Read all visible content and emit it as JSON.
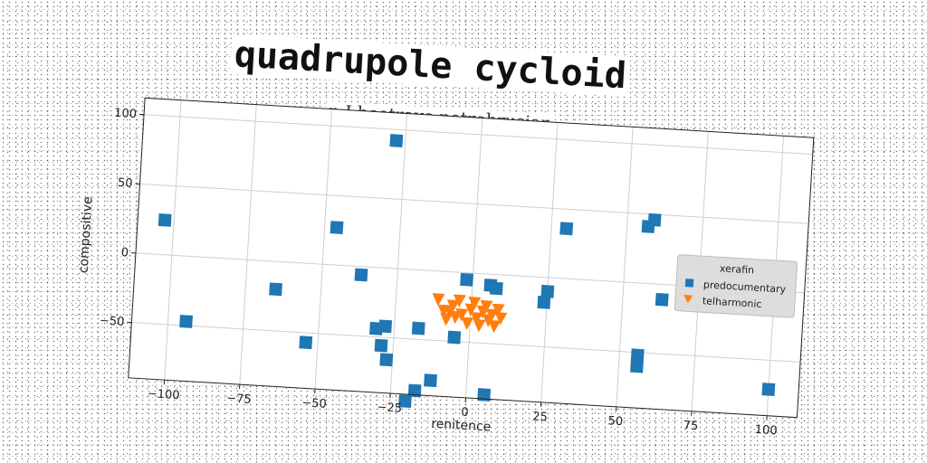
{
  "chart_data": {
    "type": "scatter",
    "title": "quadrupole cycloid",
    "subtitle": "n I beetrave petrobrusian",
    "xlabel": "renitence",
    "ylabel": "compositive",
    "xlim": [
      -112,
      110
    ],
    "ylim": [
      -90,
      112
    ],
    "xticks": [
      -100,
      -75,
      -50,
      -25,
      0,
      25,
      50,
      75,
      100
    ],
    "xtick_labels": [
      "−100",
      "−75",
      "−50",
      "−25",
      "0",
      "25",
      "50",
      "75",
      "100"
    ],
    "yticks": [
      -50,
      0,
      50,
      100
    ],
    "ytick_labels": [
      "−50",
      "0",
      "50",
      "100"
    ],
    "grid": true,
    "legend": {
      "title": "xerafin",
      "position": "center-right",
      "entries": [
        "predocumentary",
        "telharmonic"
      ]
    },
    "series": [
      {
        "name": "predocumentary",
        "marker": "square",
        "color": "#1f77b4",
        "points": [
          [
            -28,
            92
          ],
          [
            -103,
            25
          ],
          [
            -46,
            27
          ],
          [
            -37,
            -6
          ],
          [
            -65,
            -20
          ],
          [
            -94,
            -47
          ],
          [
            -54,
            -57
          ],
          [
            -31,
            -44
          ],
          [
            -28,
            -42
          ],
          [
            -17,
            -42
          ],
          [
            -29,
            -56
          ],
          [
            -27,
            -66
          ],
          [
            -5,
            -47
          ],
          [
            -2,
            -5
          ],
          [
            6,
            -8
          ],
          [
            8,
            -10
          ],
          [
            -12,
            -79
          ],
          [
            -17,
            -87
          ],
          [
            -20,
            -95
          ],
          [
            6,
            -87
          ],
          [
            24,
            -18
          ],
          [
            25,
            -10
          ],
          [
            30,
            36
          ],
          [
            57,
            41
          ],
          [
            59,
            46
          ],
          [
            63,
            -11
          ],
          [
            56,
            -52
          ],
          [
            56,
            -60
          ],
          [
            100,
            -71
          ]
        ]
      },
      {
        "name": "telharmonic",
        "marker": "triangle-down",
        "color": "#ff7f0e",
        "points": [
          [
            -11,
            -20
          ],
          [
            -9,
            -28
          ],
          [
            -8,
            -34
          ],
          [
            -6,
            -24
          ],
          [
            -5,
            -32
          ],
          [
            -4,
            -20
          ],
          [
            -3,
            -30
          ],
          [
            -1,
            -36
          ],
          [
            0,
            -26
          ],
          [
            1,
            -21
          ],
          [
            2,
            -32
          ],
          [
            3,
            -37
          ],
          [
            4,
            -27
          ],
          [
            5,
            -23
          ],
          [
            6,
            -33
          ],
          [
            7,
            -29
          ],
          [
            8,
            -37
          ],
          [
            9,
            -25
          ],
          [
            10,
            -31
          ],
          [
            -7,
            -28
          ]
        ]
      }
    ]
  }
}
